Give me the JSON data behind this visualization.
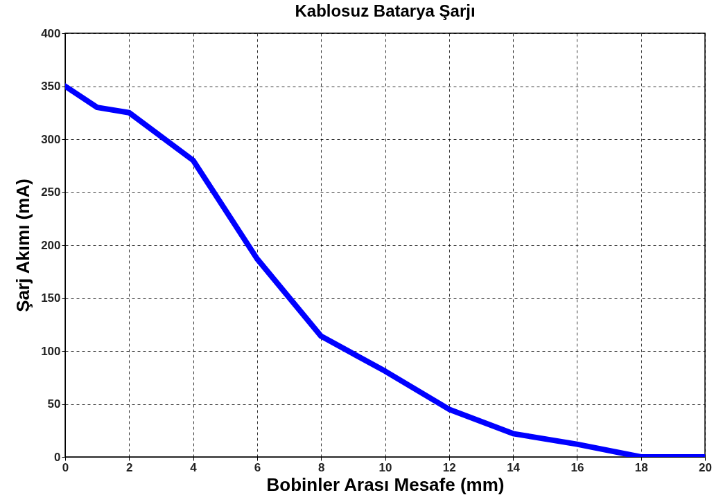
{
  "chart_data": {
    "type": "line",
    "title": "Kablosuz Batarya Şarjı",
    "xlabel": "Bobinler Arası Mesafe (mm)",
    "ylabel": "Şarj Akımı (mA)",
    "x": [
      0,
      1,
      2,
      4,
      6,
      8,
      10,
      12,
      14,
      16,
      18,
      20
    ],
    "series": [
      {
        "color": "#0000ff",
        "values": [
          350,
          330,
          325,
          280,
          187,
          114,
          81,
          45,
          22,
          12,
          0,
          0
        ]
      }
    ],
    "xlim": [
      0,
      20
    ],
    "ylim": [
      0,
      400
    ],
    "xticks": [
      0,
      2,
      4,
      6,
      8,
      10,
      12,
      14,
      16,
      18,
      20
    ],
    "yticks": [
      0,
      50,
      100,
      150,
      200,
      250,
      300,
      350,
      400
    ],
    "grid": true
  }
}
